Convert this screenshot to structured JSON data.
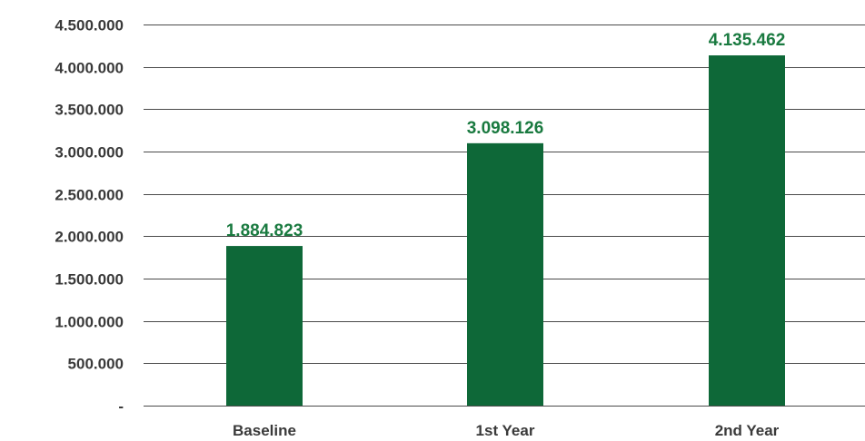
{
  "chart_data": {
    "type": "bar",
    "categories": [
      "Baseline",
      "1st Year",
      "2nd Year"
    ],
    "values": [
      1884823,
      3098126,
      4135462
    ],
    "value_labels": [
      "1.884.823",
      "3.098.126",
      "4.135.462"
    ],
    "ylim": [
      0,
      4500000
    ],
    "yticks": [
      0,
      500000,
      1000000,
      1500000,
      2000000,
      2500000,
      3000000,
      3500000,
      4000000,
      4500000
    ],
    "ytick_labels": [
      "-",
      "500.000",
      "1.000.000",
      "1.500.000",
      "2.000.000",
      "2.500.000",
      "3.000.000",
      "3.500.000",
      "4.000.000",
      "4.500.000"
    ],
    "grid": true,
    "legend": "none",
    "title": "",
    "xlabel": "",
    "ylabel": "",
    "colors": {
      "bar": "#0e6838",
      "data_label": "#1a7a40",
      "axis_text": "#3a3a3a",
      "grid": "#4a4a4a"
    }
  }
}
